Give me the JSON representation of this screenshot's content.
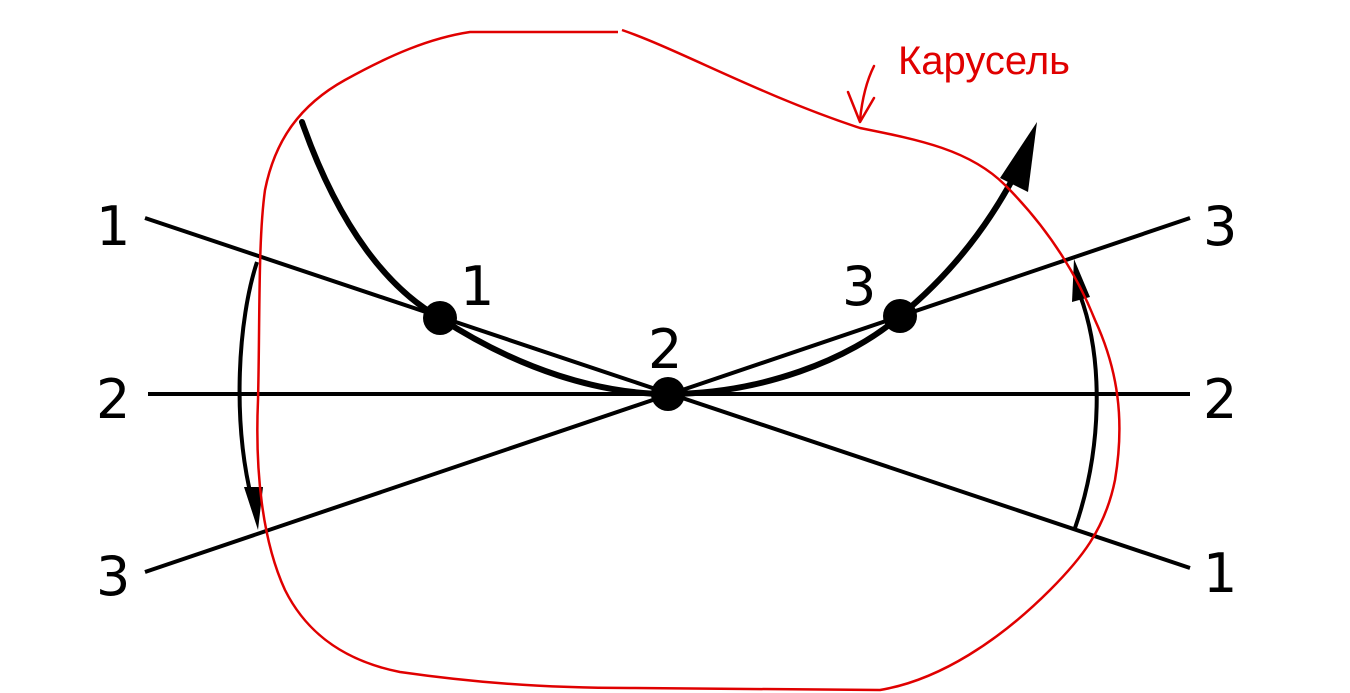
{
  "colors": {
    "ink": "#000000",
    "annotation": "#e00000",
    "background": "#ffffff"
  },
  "lines": [
    {
      "id": "line-1",
      "left_label": "1",
      "right_label": "1"
    },
    {
      "id": "line-2",
      "left_label": "2",
      "right_label": "2"
    },
    {
      "id": "line-3",
      "left_label": "3",
      "right_label": "3"
    }
  ],
  "points": [
    {
      "id": "point-1",
      "label": "1"
    },
    {
      "id": "point-2",
      "label": "2"
    },
    {
      "id": "point-3",
      "label": "3"
    }
  ],
  "annotation": {
    "label": "Карусель"
  }
}
